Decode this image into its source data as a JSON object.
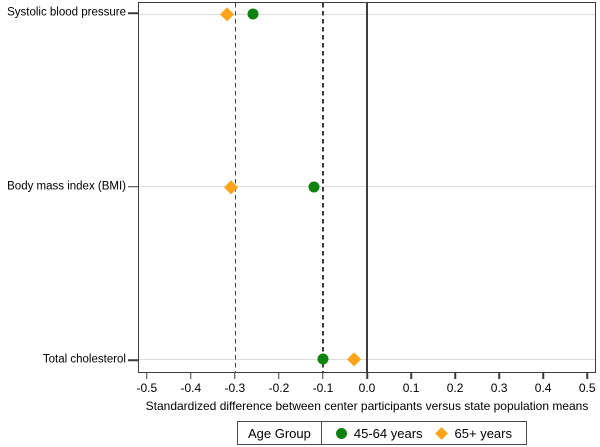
{
  "chart_data": {
    "type": "scatter",
    "orientation": "horizontal-dotplot",
    "title": "",
    "xlabel": "Standardized difference between center participants versus state population means",
    "ylabel": "",
    "categories": [
      "Systolic blood pressure",
      "Body mass index (BMI)",
      "Total cholesterol"
    ],
    "series": [
      {
        "name": "45-64 years",
        "marker": "circle",
        "color": "#0f820f",
        "values": [
          -0.26,
          -0.12,
          -0.1
        ]
      },
      {
        "name": "65+ years",
        "marker": "diamond",
        "color": "#ffa41a",
        "values": [
          -0.32,
          -0.31,
          -0.03
        ]
      }
    ],
    "xlim": [
      -0.52,
      0.52
    ],
    "x_ticks": [
      -0.5,
      -0.4,
      -0.3,
      -0.2,
      -0.1,
      0.0,
      0.1,
      0.2,
      0.3,
      0.4,
      0.5
    ],
    "x_tick_labels": [
      "-0.5",
      "-0.4",
      "-0.3",
      "-0.2",
      "-0.1",
      "0.0",
      "0.1",
      "0.2",
      "0.3",
      "0.4",
      "0.5"
    ],
    "reference_lines": [
      {
        "x": -0.3,
        "style": "dashed"
      },
      {
        "x": -0.1,
        "style": "dashed"
      },
      {
        "x": 0.0,
        "style": "solid"
      }
    ],
    "grid": "horizontal-light",
    "legend": {
      "title": "Age Group",
      "position": "bottom"
    },
    "style": {
      "frame_color": "#3c3c3c",
      "gridline_color": "#dcdcdc",
      "reference_line_color": "#3d3d3d",
      "background": "#ffffff"
    }
  }
}
